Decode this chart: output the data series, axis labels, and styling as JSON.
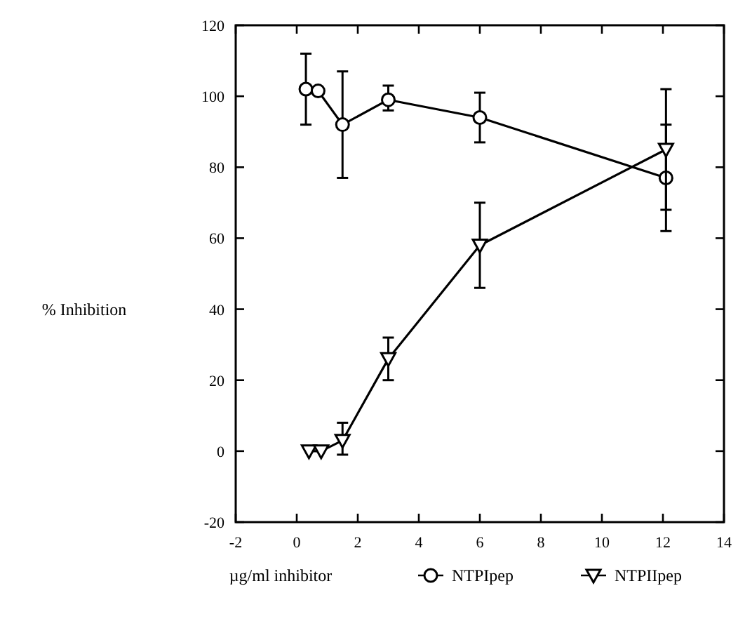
{
  "chart_data": {
    "type": "line",
    "xlabel": "µg/ml inhibitor",
    "ylabel": "% Inhibition",
    "xlim": [
      -2,
      14
    ],
    "ylim": [
      -20,
      120
    ],
    "xticks": [
      -2,
      0,
      2,
      4,
      6,
      8,
      10,
      12,
      14
    ],
    "yticks": [
      -20,
      0,
      20,
      40,
      60,
      80,
      100,
      120
    ],
    "legend": "bottom",
    "grid": false,
    "line_style": "solid",
    "series": [
      {
        "name": "NTPIpep",
        "color": "#000000",
        "marker": "circle",
        "x": [
          0.3,
          0.7,
          1.5,
          3.0,
          6.0,
          12.1
        ],
        "values": [
          102,
          101.5,
          92,
          99,
          94,
          77
        ],
        "errors": [
          [
            92,
            112
          ],
          null,
          [
            77,
            107
          ],
          [
            96,
            103
          ],
          [
            87,
            101
          ],
          [
            62,
            92
          ]
        ]
      },
      {
        "name": "NTPIIpep",
        "color": "#000000",
        "marker": "triangle",
        "x": [
          0.4,
          0.8,
          1.5,
          3.0,
          6.0,
          12.1
        ],
        "values": [
          0,
          0,
          3,
          26,
          58,
          85
        ],
        "errors": [
          null,
          null,
          [
            -1,
            8
          ],
          [
            20,
            32
          ],
          [
            46,
            70
          ],
          [
            68,
            102
          ]
        ]
      }
    ]
  }
}
